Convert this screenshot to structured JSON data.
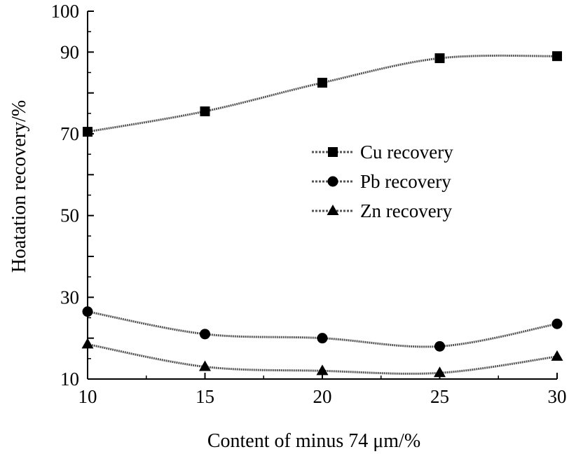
{
  "chart_data": {
    "type": "line",
    "title": "",
    "xlabel": "Content of minus 74 μm/%",
    "ylabel": "Hoatation recovery/%",
    "xlim": [
      10,
      30
    ],
    "ylim": [
      10,
      100
    ],
    "x_ticks": [
      10,
      15,
      20,
      25,
      30
    ],
    "y_tick_labels": [
      10,
      30,
      50,
      70,
      90,
      100
    ],
    "grid": false,
    "legend_position": "center-right",
    "series": [
      {
        "name": "Cu recovery",
        "marker": "square",
        "x": [
          10,
          15,
          20,
          25,
          30
        ],
        "y": [
          70.5,
          75.5,
          82.5,
          88.5,
          89.0
        ]
      },
      {
        "name": "Pb recovery",
        "marker": "circle",
        "x": [
          10,
          15,
          20,
          25,
          30
        ],
        "y": [
          26.5,
          21.0,
          20.0,
          18.0,
          23.5
        ]
      },
      {
        "name": "Zn recovery",
        "marker": "triangle",
        "x": [
          10,
          15,
          20,
          25,
          30
        ],
        "y": [
          18.5,
          13.0,
          12.0,
          11.5,
          15.5
        ]
      }
    ],
    "colors": {
      "line": "#555555",
      "marker": "#000000",
      "axis": "#000000"
    }
  }
}
